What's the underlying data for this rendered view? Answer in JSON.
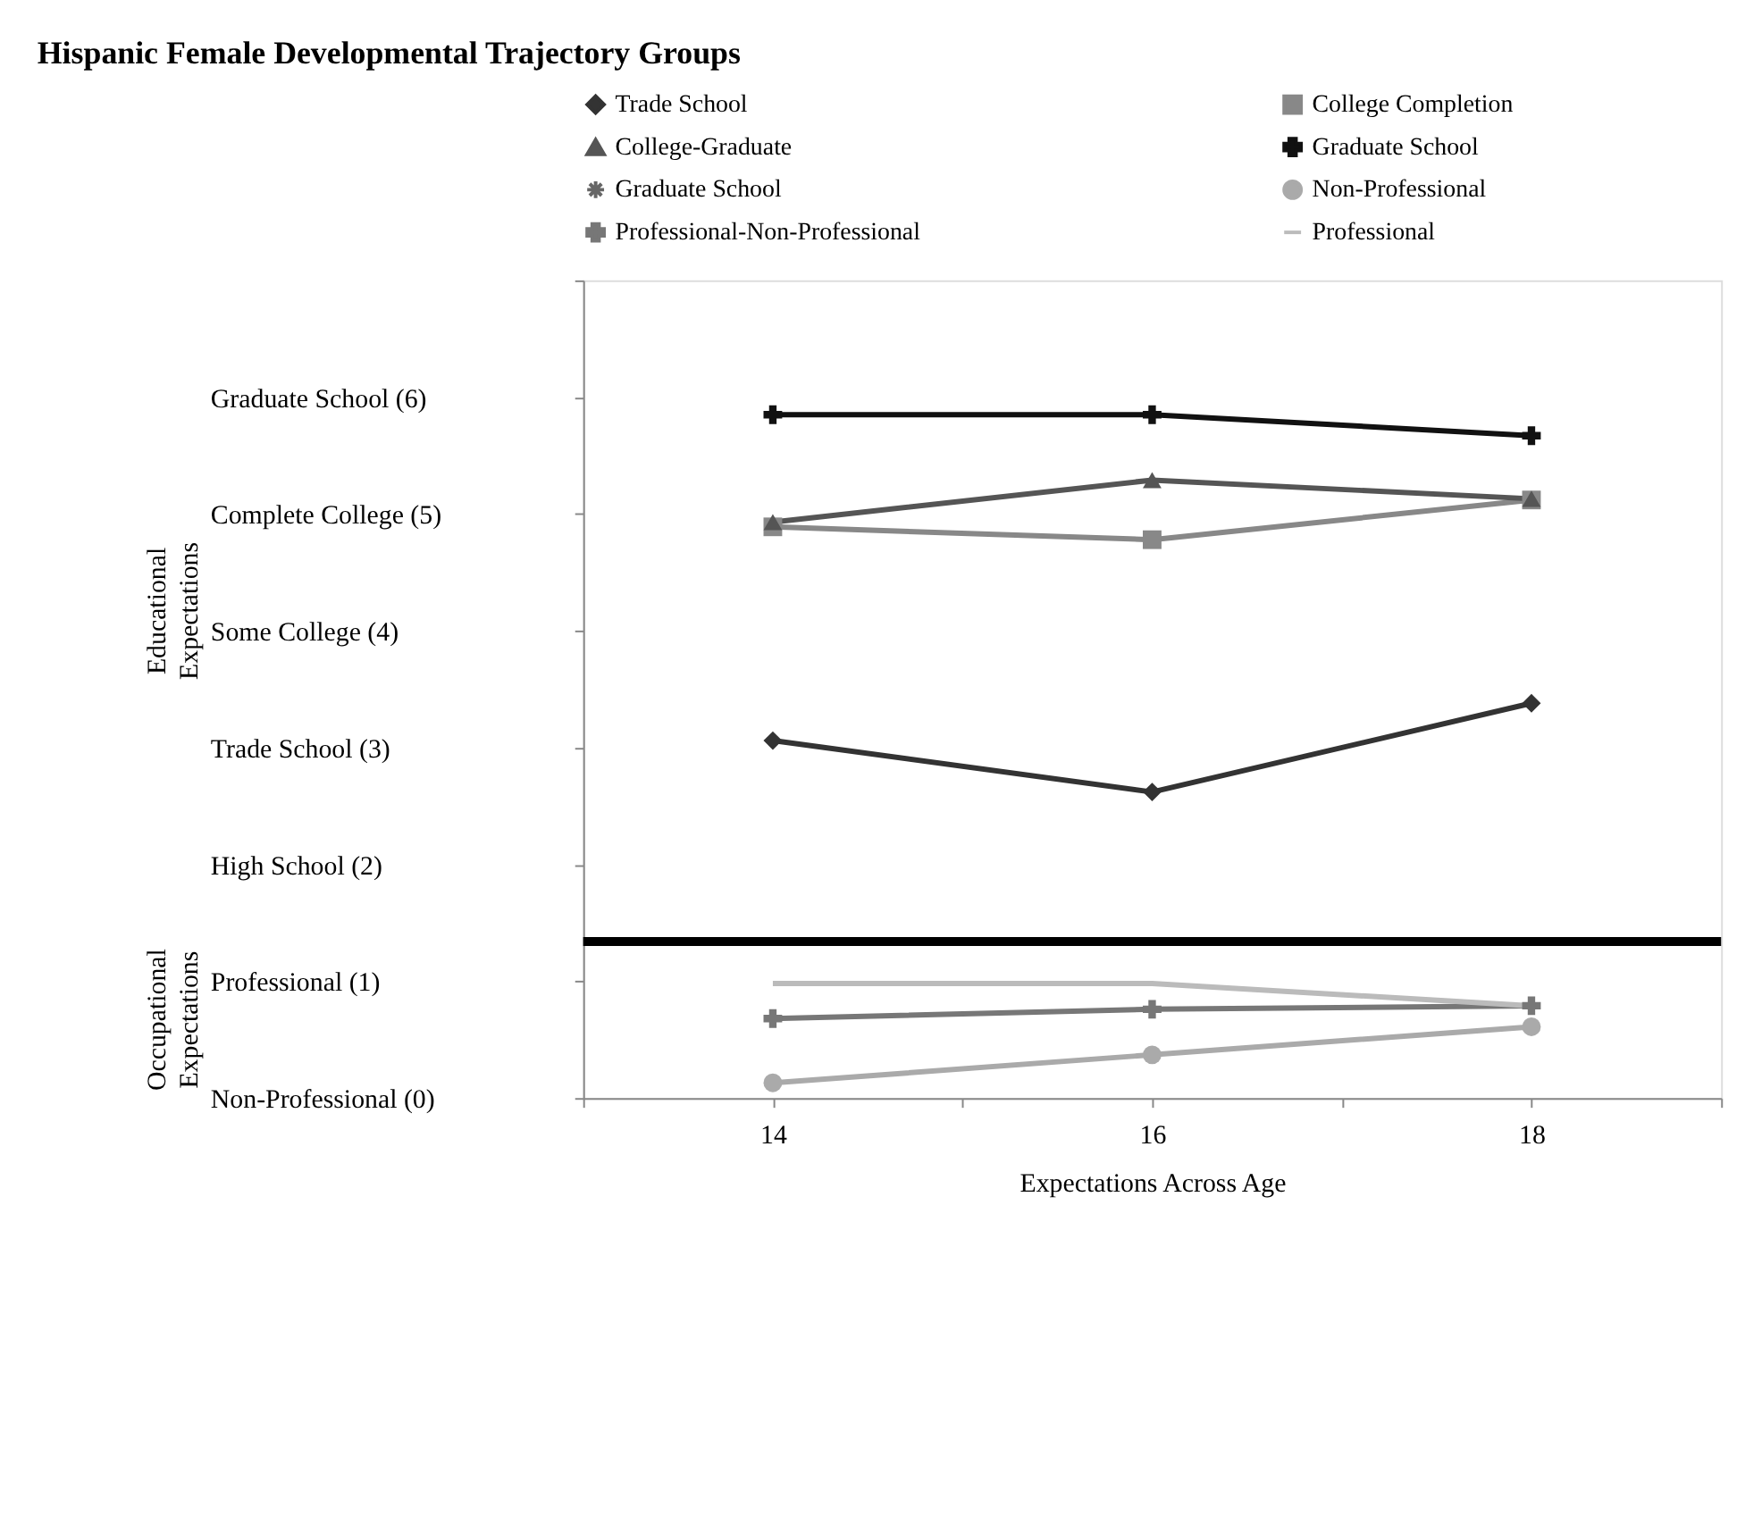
{
  "chart_data": {
    "type": "line",
    "title": "Hispanic Female Developmental Trajectory Groups",
    "xlabel": "Expectations Across Age",
    "ylabel": "Educational Expectations",
    "annotations": [
      "Occupational Expectations"
    ],
    "x": [
      14,
      16,
      18
    ],
    "series": [
      {
        "name": "Trade School",
        "color": "#333333",
        "marker": "diamond",
        "values": [
          3.06,
          2.62,
          3.38
        ]
      },
      {
        "name": "College Completion",
        "color": "#888888",
        "marker": "square",
        "values": [
          4.89,
          4.78,
          5.12
        ]
      },
      {
        "name": "College-Graduate",
        "color": "#555555",
        "marker": "triangle",
        "values": [
          4.93,
          5.29,
          5.13
        ]
      },
      {
        "name": "Graduate School",
        "color": "#111111",
        "marker": "cross",
        "values": [
          5.85,
          5.85,
          5.67
        ]
      },
      {
        "name": "Graduate School",
        "color": "#666666",
        "marker": "star",
        "values": [
          null,
          null,
          null
        ]
      },
      {
        "name": "Non-Professional",
        "color": "#aaaaaa",
        "marker": "circle",
        "values": [
          0.13,
          0.37,
          0.61
        ]
      },
      {
        "name": "Professional-Non-Professional",
        "color": "#777777",
        "marker": "cross",
        "values": [
          0.68,
          0.76,
          0.79
        ]
      },
      {
        "name": "Professional",
        "color": "#bbbbbb",
        "marker": "none",
        "values": [
          0.98,
          0.98,
          0.79
        ]
      }
    ],
    "xlim": [
      13,
      19
    ],
    "xticks": [
      {
        "value": 13,
        "label": null
      },
      14,
      {
        "value": 15,
        "label": null
      },
      16,
      {
        "value": 17,
        "label": null
      },
      18,
      {
        "value": 19,
        "label": null
      }
    ],
    "ylim": [
      0,
      7
    ],
    "yticks": [
      {
        "value": 0,
        "label": "Non-Professional (0)"
      },
      {
        "value": 1,
        "label": "Professional (1)"
      },
      {
        "value": 2,
        "label": "High School (2)"
      },
      {
        "value": 3,
        "label": "Trade School (3)"
      },
      {
        "value": 4,
        "label": "Some College (4)"
      },
      {
        "value": 5,
        "label": "Complete College (5)"
      },
      {
        "value": 6,
        "label": "Graduate School (6)"
      },
      {
        "value": 7,
        "label": null
      }
    ],
    "ref_lines": [
      {
        "axis": "y",
        "value": 1.34,
        "color": "#000000"
      }
    ],
    "grid": false,
    "legend": "top",
    "line_style": "solid"
  }
}
